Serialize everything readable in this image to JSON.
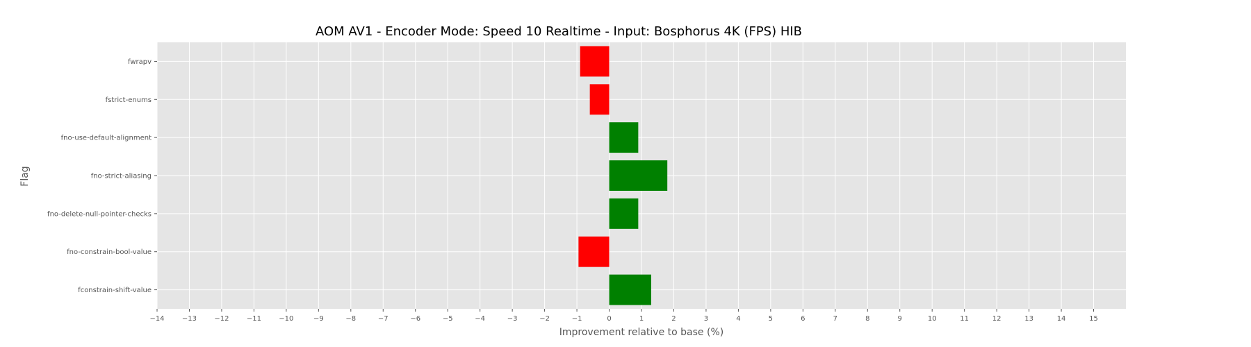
{
  "chart_data": {
    "type": "bar",
    "orientation": "horizontal",
    "title": "AOM AV1 - Encoder Mode: Speed 10 Realtime - Input: Bosphorus 4K (FPS) HIB",
    "xlabel": "Improvement relative to base (%)",
    "ylabel": "Flag",
    "categories": [
      "fwrapv",
      "fstrict-enums",
      "fno-use-default-alignment",
      "fno-strict-aliasing",
      "fno-delete-null-pointer-checks",
      "fno-constrain-bool-value",
      "fconstrain-shift-value"
    ],
    "values": [
      -0.9,
      -0.6,
      0.9,
      1.8,
      0.9,
      -0.95,
      1.3
    ],
    "xlim": [
      -14,
      16
    ],
    "xticks": [
      -14,
      -13,
      -12,
      -11,
      -10,
      -9,
      -8,
      -7,
      -6,
      -5,
      -4,
      -3,
      -2,
      -1,
      0,
      1,
      2,
      3,
      4,
      5,
      6,
      7,
      8,
      9,
      10,
      11,
      12,
      13,
      14,
      15
    ],
    "xtick_labels": [
      "−14",
      "−13",
      "−12",
      "−11",
      "−10",
      "−9",
      "−8",
      "−7",
      "−6",
      "−5",
      "−4",
      "−3",
      "−2",
      "−1",
      "0",
      "1",
      "2",
      "3",
      "4",
      "5",
      "6",
      "7",
      "8",
      "9",
      "10",
      "11",
      "12",
      "13",
      "14",
      "15"
    ],
    "grid": true,
    "legend": "none",
    "colors": {
      "positive": "#008000",
      "negative": "#ff0000",
      "background": "#e5e5e5",
      "grid": "#ffffff"
    }
  }
}
